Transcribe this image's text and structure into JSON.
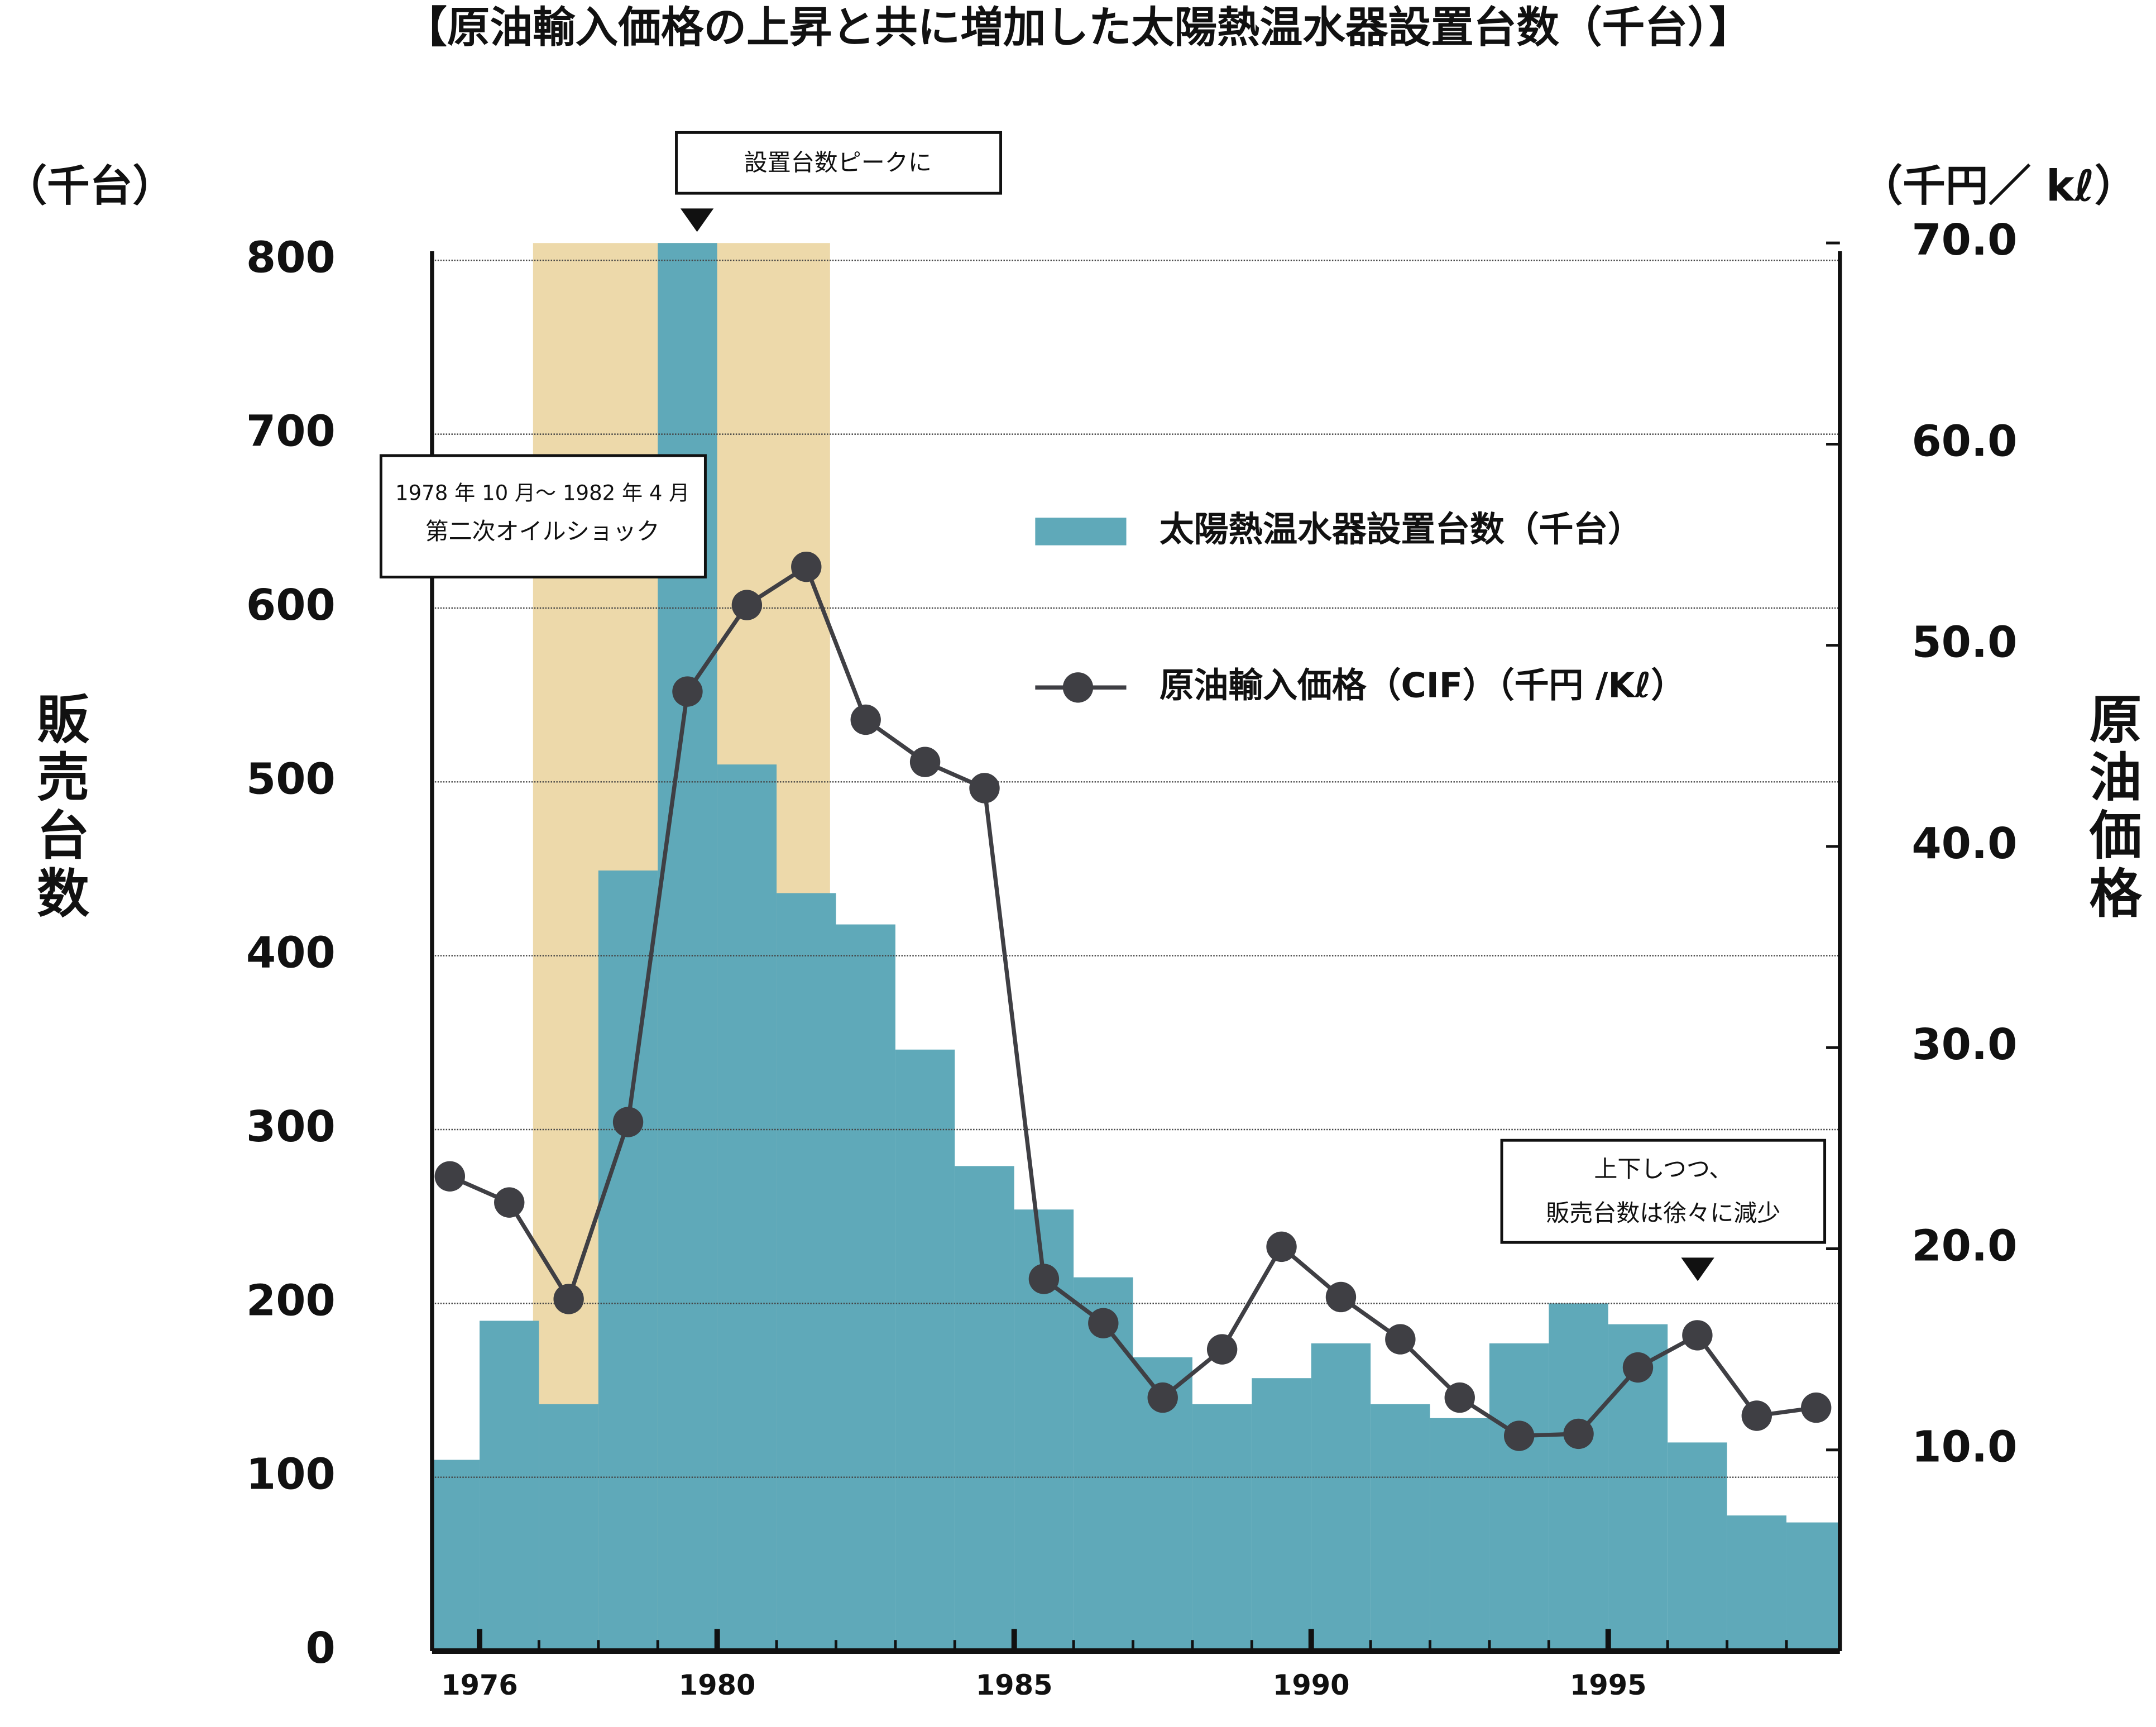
{
  "chart_data": {
    "type": "bar",
    "title": "【原油輸入価格の上昇と共に増加した太陽熱温水器設置台数（千台）】",
    "y_unit": "（千台）",
    "y_label": "販売台数",
    "y2_unit": "（千円／ kℓ）",
    "y2_label": "原油価格",
    "x": [
      1975,
      1976,
      1977,
      1978,
      1979,
      1980,
      1981,
      1982,
      1983,
      1984,
      1985,
      1986,
      1987,
      1988,
      1989,
      1990,
      1991,
      1992,
      1993,
      1994,
      1995,
      1996,
      1997,
      1998
    ],
    "xlim": [
      1975.2,
      1998.9
    ],
    "xticks": [
      1976,
      1980,
      1985,
      1990,
      1995
    ],
    "ylim": [
      0,
      810
    ],
    "yticks": [
      0,
      100,
      200,
      300,
      400,
      500,
      600,
      700,
      800
    ],
    "y2lim": [
      0,
      70
    ],
    "y2ticks": [
      {
        "value": 10,
        "label": "10.0"
      },
      {
        "value": 20,
        "label": "20.0"
      },
      {
        "value": 30,
        "label": "30.0"
      },
      {
        "value": 40,
        "label": "40.0"
      },
      {
        "value": 50,
        "label": "50.0"
      },
      {
        "value": 60,
        "label": "60.0"
      },
      {
        "value": 70,
        "label": "70.0"
      }
    ],
    "grid": true,
    "series": [
      {
        "name": "太陽熱温水器設置台数（千台）",
        "type": "bar",
        "color": "#5fa9b9",
        "values": [
          110,
          190,
          142,
          449,
          810,
          510,
          436,
          418,
          346,
          279,
          254,
          215,
          169,
          142,
          157,
          177,
          142,
          134,
          177,
          200,
          188,
          120,
          78,
          74
        ]
      },
      {
        "name": "原油輸入価格（CIF）（千円 /Kℓ）",
        "type": "line",
        "axis": "y2",
        "color": "#3f3f44",
        "values": [
          23.6,
          22.3,
          17.5,
          26.3,
          47.7,
          52.0,
          53.9,
          46.3,
          44.2,
          42.9,
          18.5,
          16.3,
          12.6,
          15.0,
          20.1,
          17.6,
          15.5,
          12.6,
          10.7,
          10.8,
          14.1,
          15.7,
          11.7,
          12.1
        ]
      }
    ],
    "shaded_region": {
      "x": [
        1976.9,
        1981.9
      ],
      "color": "#edd9aa"
    },
    "annotations": [
      [
        "設置台数ピークに"
      ],
      [
        "1978 年 10 月～ 1982 年 4 月",
        "第二次オイルショック"
      ],
      [
        "上下しつつ、",
        "販売台数は徐々に減少"
      ]
    ]
  }
}
